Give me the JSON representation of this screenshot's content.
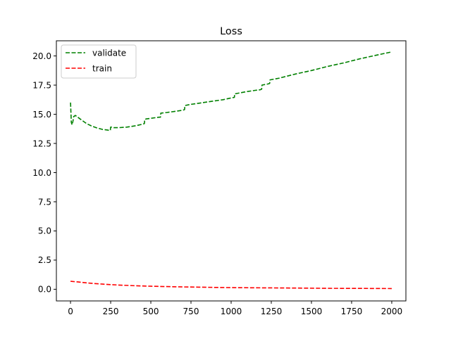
{
  "chart_data": {
    "type": "line",
    "title": "Loss",
    "xlabel": "",
    "ylabel": "",
    "xlim": [
      -88,
      2088
    ],
    "ylim": [
      -1.0,
      21.3
    ],
    "xticks": [
      0,
      250,
      500,
      750,
      1000,
      1250,
      1500,
      1750,
      2000
    ],
    "xtick_labels": [
      "0",
      "250",
      "500",
      "750",
      "1000",
      "1250",
      "1500",
      "1750",
      "2000"
    ],
    "yticks": [
      0.0,
      2.5,
      5.0,
      7.5,
      10.0,
      12.5,
      15.0,
      17.5,
      20.0
    ],
    "ytick_labels": [
      "0.0",
      "2.5",
      "5.0",
      "7.5",
      "10.0",
      "12.5",
      "15.0",
      "17.5",
      "20.0"
    ],
    "grid": false,
    "legend_position": "upper-left",
    "series": [
      {
        "name": "validate",
        "color": "#008000",
        "linestyle": "dashed",
        "x": [
          0,
          5,
          10,
          15,
          20,
          30,
          40,
          60,
          80,
          100,
          130,
          160,
          200,
          230,
          245,
          248,
          250,
          255,
          270,
          300,
          350,
          400,
          450,
          460,
          462,
          470,
          500,
          550,
          560,
          562,
          600,
          650,
          700,
          710,
          712,
          750,
          800,
          850,
          900,
          950,
          1000,
          1020,
          1022,
          1100,
          1150,
          1180,
          1190,
          1192,
          1230,
          1240,
          1242,
          1300,
          1400,
          1500,
          1600,
          1700,
          1800,
          1900,
          2000
        ],
        "y": [
          16.0,
          14.3,
          14.1,
          14.4,
          14.8,
          14.9,
          14.8,
          14.6,
          14.4,
          14.2,
          14.0,
          13.85,
          13.7,
          13.65,
          13.6,
          13.65,
          13.9,
          13.9,
          13.85,
          13.85,
          13.9,
          14.0,
          14.15,
          14.2,
          14.55,
          14.6,
          14.65,
          14.75,
          14.75,
          15.1,
          15.15,
          15.25,
          15.35,
          15.4,
          15.75,
          15.85,
          15.95,
          16.05,
          16.15,
          16.25,
          16.4,
          16.45,
          16.75,
          16.95,
          17.05,
          17.1,
          17.15,
          17.5,
          17.6,
          17.65,
          17.95,
          18.1,
          18.45,
          18.75,
          19.1,
          19.4,
          19.75,
          20.05,
          20.35
        ]
      },
      {
        "name": "train",
        "color": "#ff0000",
        "linestyle": "dashed",
        "x": [
          0,
          50,
          100,
          150,
          200,
          250,
          300,
          400,
          500,
          600,
          700,
          800,
          900,
          1000,
          1200,
          1400,
          1600,
          1800,
          2000
        ],
        "y": [
          0.68,
          0.62,
          0.55,
          0.49,
          0.44,
          0.4,
          0.36,
          0.3,
          0.26,
          0.23,
          0.2,
          0.18,
          0.16,
          0.14,
          0.12,
          0.1,
          0.08,
          0.07,
          0.06
        ]
      }
    ]
  }
}
